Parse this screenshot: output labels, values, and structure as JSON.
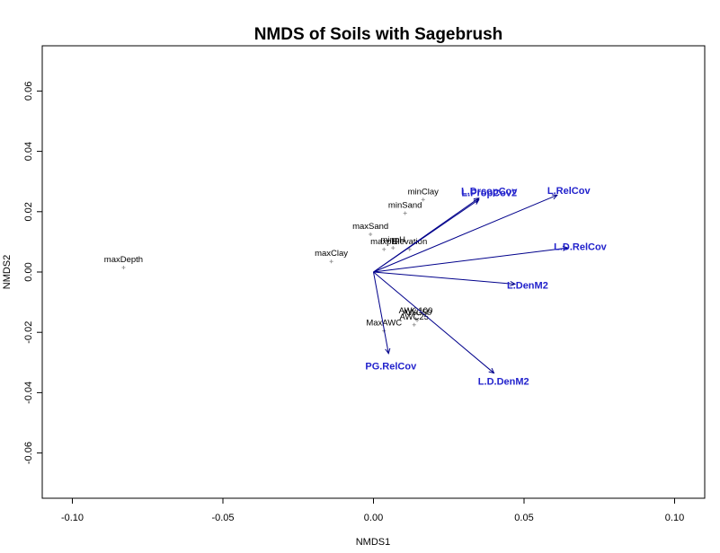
{
  "chart_data": {
    "type": "scatter",
    "title": "NMDS of Soils with Sagebrush",
    "xlabel": "NMDS1",
    "ylabel": "NMDS2",
    "xlim": [
      -0.11,
      0.11
    ],
    "ylim": [
      -0.075,
      0.075
    ],
    "xticks": [
      -0.1,
      -0.05,
      0.0,
      0.05,
      0.1
    ],
    "xtick_labels": [
      "-0.10",
      "-0.05",
      "0.00",
      "0.05",
      "0.10"
    ],
    "yticks": [
      -0.06,
      -0.04,
      -0.02,
      0.0,
      0.02,
      0.04,
      0.06
    ],
    "ytick_labels": [
      "-0.06",
      "-0.04",
      "-0.02",
      "0.00",
      "0.02",
      "0.04",
      "0.06"
    ],
    "grid": false,
    "vector_color": "#00008B",
    "vector_label_color": "#2222CC",
    "point_marker_color": "#999999",
    "points": [
      {
        "label": "maxDepth",
        "x": -0.083,
        "y": 0.0015
      },
      {
        "label": "maxClay",
        "x": -0.014,
        "y": 0.0035
      },
      {
        "label": "maxSand",
        "x": -0.001,
        "y": 0.0125
      },
      {
        "label": "minSand",
        "x": 0.0105,
        "y": 0.0195
      },
      {
        "label": "minClay",
        "x": 0.0165,
        "y": 0.024
      },
      {
        "label": "maxpH",
        "x": 0.0035,
        "y": 0.0075
      },
      {
        "label": "minpH",
        "x": 0.0065,
        "y": 0.008
      },
      {
        "label": "Elevation",
        "x": 0.012,
        "y": 0.0075
      },
      {
        "label": "AWC100",
        "x": 0.014,
        "y": -0.0155
      },
      {
        "label": "AWC50",
        "x": 0.0145,
        "y": -0.016
      },
      {
        "label": "AWC25",
        "x": 0.0135,
        "y": -0.0175
      },
      {
        "label": "MaxAWC",
        "x": 0.0035,
        "y": -0.0195
      }
    ],
    "vectors": [
      {
        "label": "L.DrcopCov",
        "x": 0.035,
        "y": 0.0245
      },
      {
        "label": "L.PropCov2",
        "x": 0.035,
        "y": 0.024
      },
      {
        "label": "L.RelCov",
        "x": 0.061,
        "y": 0.0255
      },
      {
        "label": "L.D.RelCov",
        "x": 0.0645,
        "y": 0.008
      },
      {
        "label": "L.DenM2",
        "x": 0.047,
        "y": -0.004
      },
      {
        "label": "L.D.DenM2",
        "x": 0.04,
        "y": -0.0335
      },
      {
        "label": "PG.RelCov",
        "x": 0.005,
        "y": -0.027
      }
    ]
  }
}
